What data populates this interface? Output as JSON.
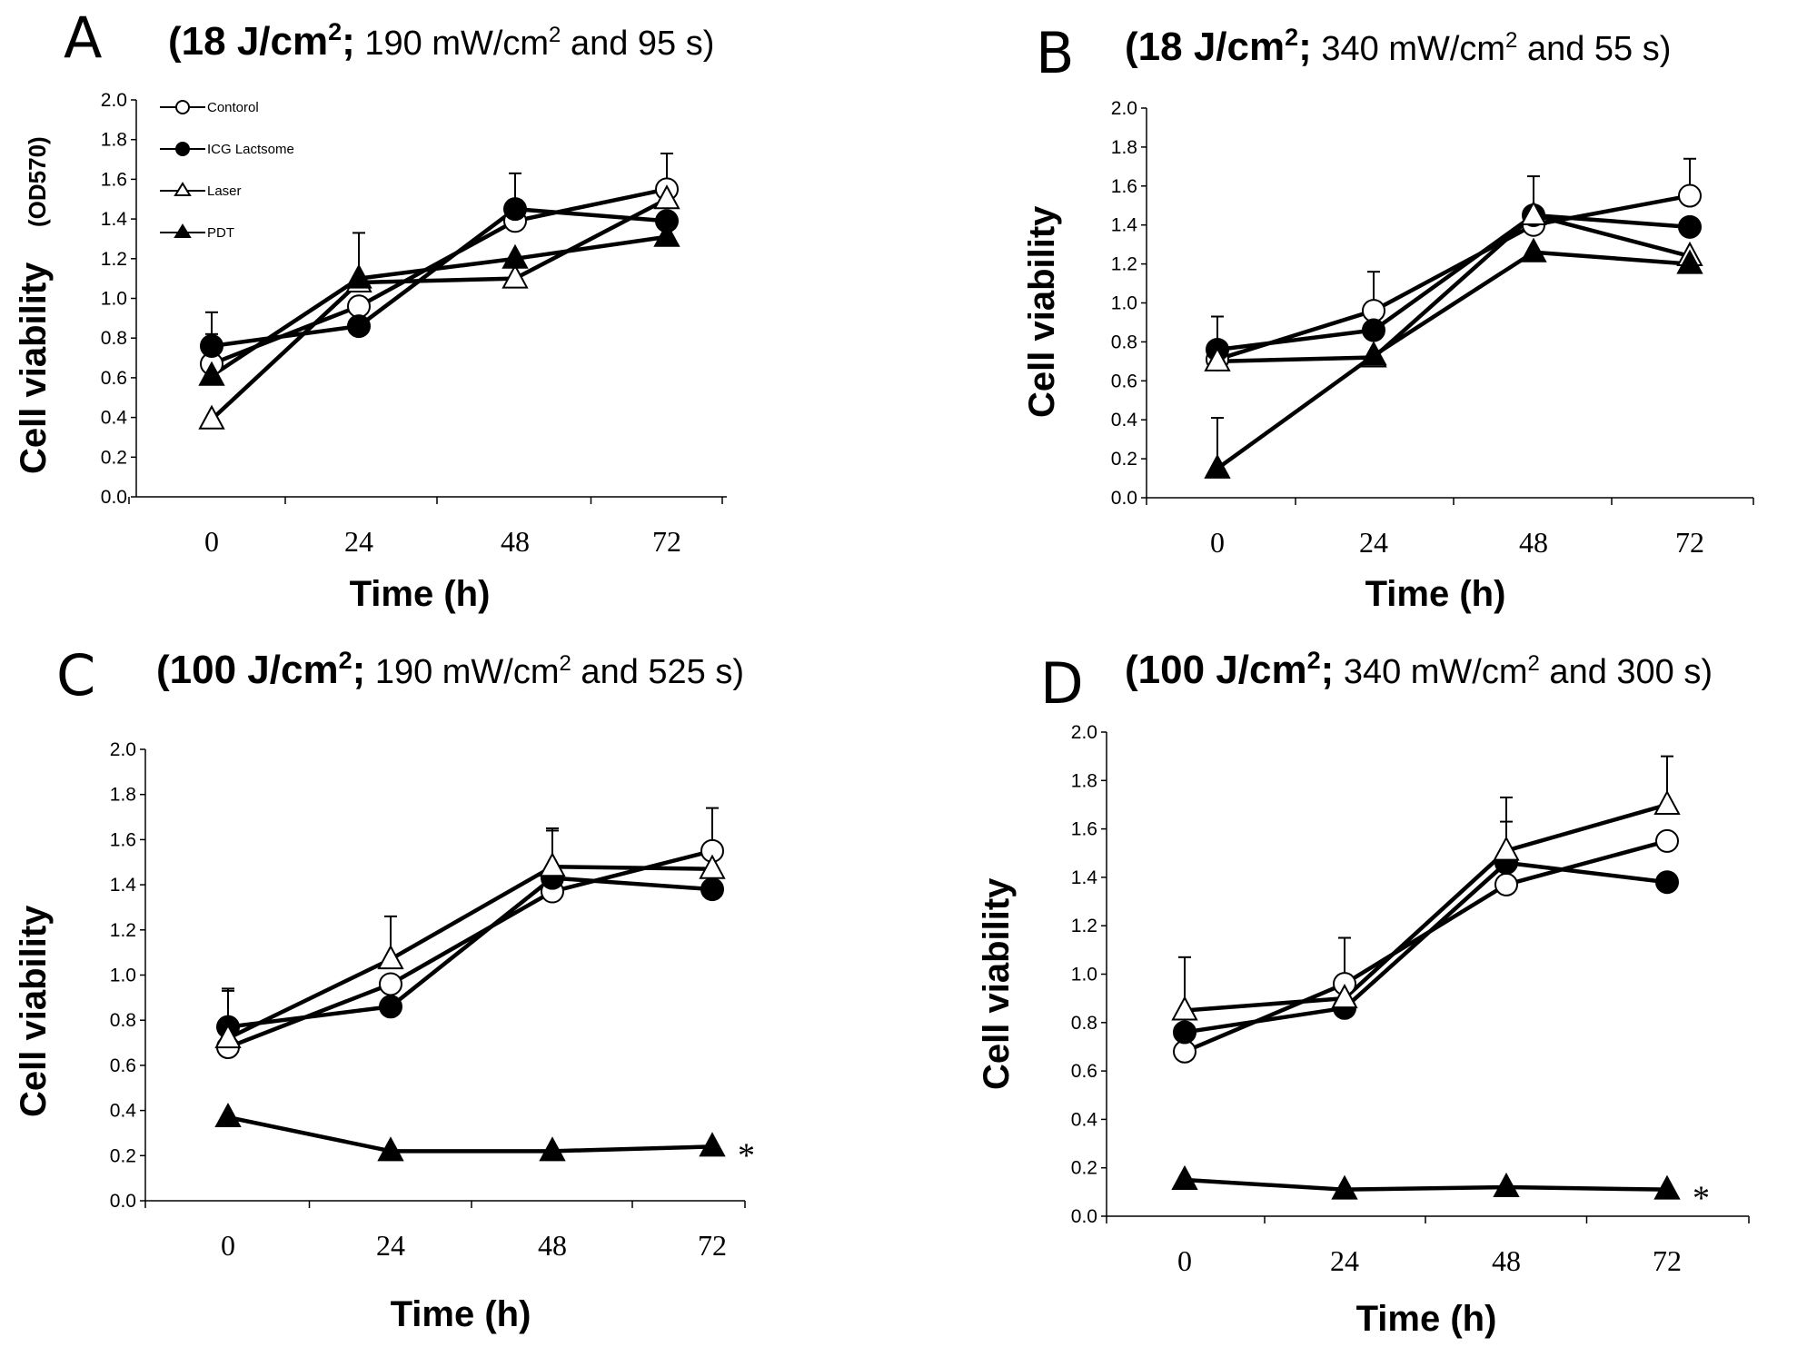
{
  "chart_data": [
    {
      "type": "line",
      "panel": "A",
      "title": {
        "bold": "(18 J/cm",
        "bold_sup": "2",
        "bold_end": ";",
        "normal": " 190 mW/cm",
        "normal_sup": "2",
        "normal_end": " and 95 s)"
      },
      "xlabel": "Time (h)",
      "ylabel": "Cell viability",
      "ylabel_unit": "(OD570)",
      "categories": [
        "0",
        "24",
        "48",
        "72"
      ],
      "ylim": [
        0,
        2.0
      ],
      "yticks": [
        "0.0",
        "0.2",
        "0.4",
        "0.6",
        "0.8",
        "1.0",
        "1.2",
        "1.4",
        "1.6",
        "1.8",
        "2.0"
      ],
      "legend": {
        "placement": "top-left",
        "entries": [
          "Contorol",
          "ICG Lactsome",
          "Laser",
          "PDT"
        ]
      },
      "series": [
        {
          "name": "Contorol",
          "marker": "circle-open",
          "values": [
            0.67,
            0.96,
            1.39,
            1.55
          ],
          "errors": [
            0.15,
            0.0,
            0.0,
            0.18
          ]
        },
        {
          "name": "ICG Lactsome",
          "marker": "circle-filled",
          "values": [
            0.76,
            0.86,
            1.45,
            1.39
          ],
          "errors": [
            0.17,
            0.0,
            0.18,
            0.0
          ]
        },
        {
          "name": "Laser",
          "marker": "triangle-open",
          "values": [
            0.39,
            1.08,
            1.1,
            1.5
          ],
          "errors": [
            0.0,
            0.25,
            0.0,
            0.0
          ]
        },
        {
          "name": "PDT",
          "marker": "triangle-filled",
          "values": [
            0.61,
            1.1,
            1.2,
            1.31
          ],
          "errors": [
            0.0,
            0.0,
            0.0,
            0.0
          ]
        }
      ]
    },
    {
      "type": "line",
      "panel": "B",
      "title": {
        "bold": "(18 J/cm",
        "bold_sup": "2",
        "bold_end": ";",
        "normal": " 340 mW/cm",
        "normal_sup": "2",
        "normal_end": " and 55 s)"
      },
      "xlabel": "Time (h)",
      "ylabel": "Cell viability",
      "categories": [
        "0",
        "24",
        "48",
        "72"
      ],
      "ylim": [
        0,
        2.0
      ],
      "yticks": [
        "0.0",
        "0.2",
        "0.4",
        "0.6",
        "0.8",
        "1.0",
        "1.2",
        "1.4",
        "1.6",
        "1.8",
        "2.0"
      ],
      "series": [
        {
          "name": "Contorol",
          "marker": "circle-open",
          "values": [
            0.71,
            0.96,
            1.4,
            1.55
          ],
          "errors": [
            0.22,
            0.2,
            0.0,
            0.19
          ]
        },
        {
          "name": "ICG Lactsome",
          "marker": "circle-filled",
          "values": [
            0.76,
            0.86,
            1.45,
            1.39
          ],
          "errors": [
            0.17,
            0.0,
            0.2,
            0.0
          ]
        },
        {
          "name": "Laser",
          "marker": "triangle-open",
          "values": [
            0.7,
            0.72,
            1.45,
            1.24
          ],
          "errors": [
            0.0,
            0.0,
            0.0,
            0.0
          ]
        },
        {
          "name": "PDT",
          "marker": "triangle-filled",
          "values": [
            0.15,
            0.73,
            1.26,
            1.2
          ],
          "errors": [
            0.26,
            0.0,
            0.0,
            0.0
          ]
        }
      ]
    },
    {
      "type": "line",
      "panel": "C",
      "title": {
        "bold": "(100 J/cm",
        "bold_sup": "2",
        "bold_end": ";",
        "normal": " 190 mW/cm",
        "normal_sup": "2",
        "normal_end": " and 525 s)"
      },
      "xlabel": "Time (h)",
      "ylabel": "Cell viability",
      "categories": [
        "0",
        "24",
        "48",
        "72"
      ],
      "ylim": [
        0,
        2.0
      ],
      "yticks": [
        "0.0",
        "0.2",
        "0.4",
        "0.6",
        "0.8",
        "1.0",
        "1.2",
        "1.4",
        "1.6",
        "1.8",
        "2.0"
      ],
      "significance": "*",
      "series": [
        {
          "name": "Contorol",
          "marker": "circle-open",
          "values": [
            0.68,
            0.96,
            1.37,
            1.55
          ],
          "errors": [
            0.25,
            0.0,
            0.0,
            0.19
          ]
        },
        {
          "name": "ICG Lactsome",
          "marker": "circle-filled",
          "values": [
            0.77,
            0.86,
            1.43,
            1.38
          ],
          "errors": [
            0.17,
            0.0,
            0.21,
            0.0
          ]
        },
        {
          "name": "Laser",
          "marker": "triangle-open",
          "values": [
            0.72,
            1.07,
            1.48,
            1.47
          ],
          "errors": [
            0.0,
            0.19,
            0.17,
            0.0
          ]
        },
        {
          "name": "PDT",
          "marker": "triangle-filled",
          "values": [
            0.37,
            0.22,
            0.22,
            0.24
          ],
          "errors": [
            0.0,
            0.0,
            0.0,
            0.0
          ]
        }
      ]
    },
    {
      "type": "line",
      "panel": "D",
      "title": {
        "bold": "(100 J/cm",
        "bold_sup": "2",
        "bold_end": ";",
        "normal": " 340 mW/cm",
        "normal_sup": "2",
        "normal_end": " and 300 s)"
      },
      "xlabel": "Time (h)",
      "ylabel": "Cell viability",
      "categories": [
        "0",
        "24",
        "48",
        "72"
      ],
      "ylim": [
        0,
        2.0
      ],
      "yticks": [
        "0.0",
        "0.2",
        "0.4",
        "0.6",
        "0.8",
        "1.0",
        "1.2",
        "1.4",
        "1.6",
        "1.8",
        "2.0"
      ],
      "significance": "*",
      "series": [
        {
          "name": "Contorol",
          "marker": "circle-open",
          "values": [
            0.68,
            0.96,
            1.37,
            1.55
          ],
          "errors": [
            0.0,
            0.19,
            0.0,
            0.0
          ]
        },
        {
          "name": "ICG Lactsome",
          "marker": "circle-filled",
          "values": [
            0.76,
            0.86,
            1.46,
            1.38
          ],
          "errors": [
            0.0,
            0.0,
            0.17,
            0.0
          ]
        },
        {
          "name": "Laser",
          "marker": "triangle-open",
          "values": [
            0.85,
            0.9,
            1.51,
            1.7
          ],
          "errors": [
            0.22,
            0.25,
            0.22,
            0.2
          ]
        },
        {
          "name": "PDT",
          "marker": "triangle-filled",
          "values": [
            0.15,
            0.11,
            0.12,
            0.11
          ],
          "errors": [
            0.0,
            0.0,
            0.0,
            0.0
          ]
        }
      ]
    }
  ]
}
